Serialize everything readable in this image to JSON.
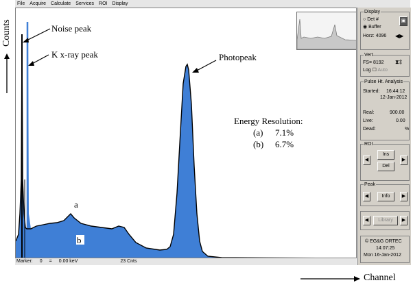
{
  "menu": [
    "File",
    "Acquire",
    "Calculate",
    "Services",
    "ROI",
    "Display"
  ],
  "annotations": {
    "noise_peak": "Noise peak",
    "kxray_peak": "K x-ray peak",
    "photopeak": "Photopeak",
    "label_a": "a",
    "label_b": "b",
    "energy_title": "Energy Resolution:",
    "res_a_label": "(a)",
    "res_a_value": "7.1%",
    "res_b_label": "(b)",
    "res_b_value": "6.7%"
  },
  "axes": {
    "y": "Counts",
    "x": "Channel"
  },
  "status": {
    "marker_label": "Marker:",
    "marker_value": "0",
    "eq": "=",
    "energy": "0.00 keV",
    "counts": "23 Cnts"
  },
  "panel": {
    "display_title": "Display",
    "det_label": "Det #",
    "buffer_label": "Buffer",
    "horz_label": "Horz:",
    "horz_value": "4096",
    "vert_title": "Vert",
    "fs_label": "FS=",
    "fs_value": "8192",
    "log_label": "Log",
    "auto_label": "Auto",
    "pha_title": "Pulse Ht. Analysis",
    "started_label": "Started:",
    "started_time": "16:44:12",
    "started_date": "12-Jan-2012",
    "real_label": "Real:",
    "real_value": "900.00",
    "live_label": "Live:",
    "live_value": "0.00",
    "dead_label": "Dead:",
    "dead_value": "%",
    "roi_title": "ROI",
    "ins_label": "Ins",
    "del_label": "Del",
    "peak_title": "Peak",
    "info_label": "Info",
    "library_label": "Library",
    "brand": "© EG&G ORTEC",
    "clock_time": "14:07:25",
    "clock_date": "Mon  16-Jan-2012"
  },
  "colors": {
    "spectrum_fill": "#3f7fd6",
    "spectrum_line": "#000000",
    "panel_bg": "#d4d0c8"
  }
}
